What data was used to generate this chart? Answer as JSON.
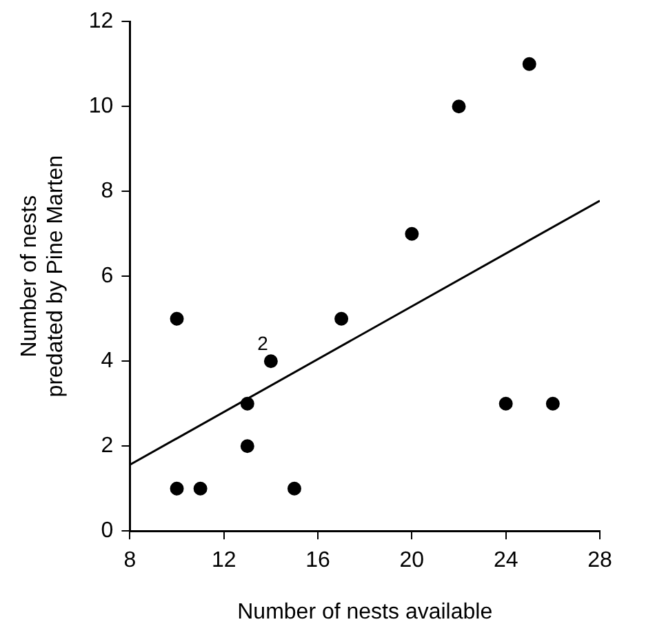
{
  "chart_data": {
    "type": "scatter",
    "xlabel": "Number of nests available",
    "ylabel": "Number of nests\npredated by Pine Marten",
    "xlim": [
      8,
      28
    ],
    "xticks": [
      8,
      12,
      16,
      20,
      24,
      28
    ],
    "ylim": [
      0,
      12
    ],
    "yticks": [
      0,
      2,
      4,
      6,
      8,
      10,
      12
    ],
    "grid": false,
    "legend": false,
    "marker": "circle",
    "series": [
      {
        "color": "#000000",
        "x": [
          10,
          10,
          11,
          13,
          13,
          14,
          15,
          17,
          20,
          22,
          24,
          25,
          26
        ],
        "values": [
          5,
          1,
          1,
          3,
          2,
          4,
          1,
          5,
          7,
          10,
          3,
          11,
          3
        ]
      },
      {
        "type": "line",
        "color": "#000000",
        "marker": "none",
        "x": [
          8,
          28
        ],
        "values": [
          1.56,
          7.78
        ]
      }
    ],
    "annotations": [
      {
        "text": "2",
        "x": 14,
        "y": 4
      }
    ]
  }
}
